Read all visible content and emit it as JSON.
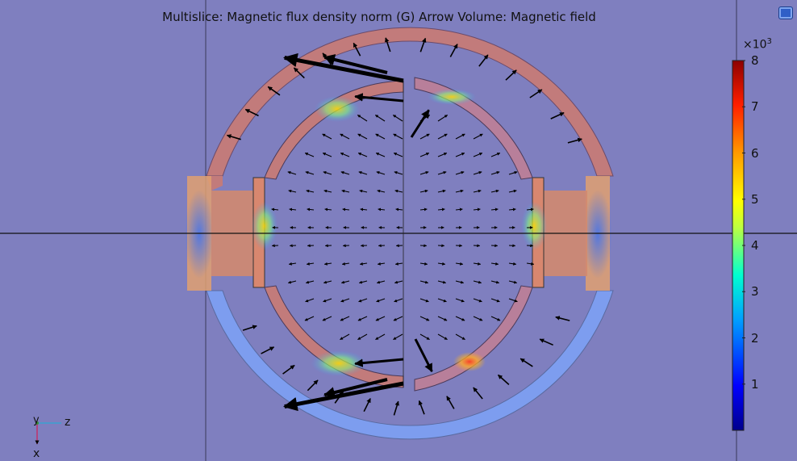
{
  "plot": {
    "title": "Multislice: Magnetic flux density norm (G)  Arrow Volume: Magnetic field"
  },
  "colorbar": {
    "exponent_base": "×10",
    "exponent_power": "3",
    "ticks": [
      "8",
      "7",
      "6",
      "5",
      "4",
      "3",
      "2",
      "1"
    ],
    "min": 0,
    "max": 8,
    "colormap": "rainbow"
  },
  "axes_triad": {
    "vertical": "y",
    "horizontal": "z",
    "down": "x"
  },
  "toolbar": {
    "icon": "view-toggle-icon"
  },
  "colors": {
    "background": "#7f7fbf",
    "arrows": "#000000",
    "yoke": "#c07a7a",
    "gridline": "#000000"
  }
}
